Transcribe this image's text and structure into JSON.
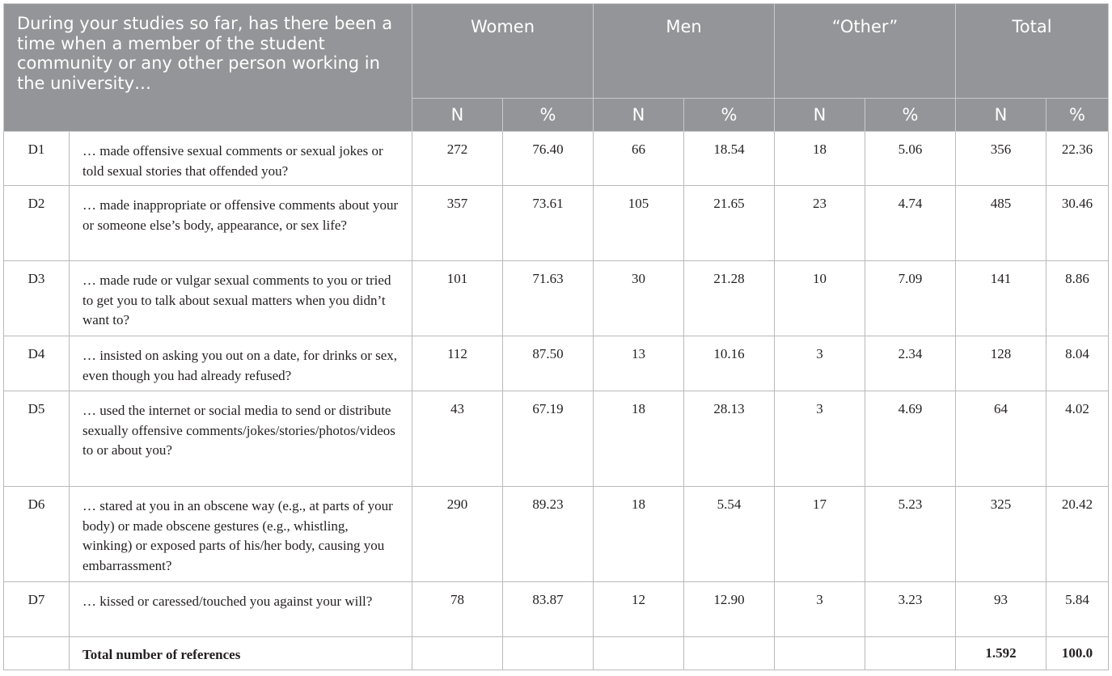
{
  "header": {
    "question": "During your studies so far, has there been a time when a member of the student community or any other person working in the university…",
    "groups": [
      "Women",
      "Men",
      "“Other”",
      "Total"
    ],
    "sub": [
      "N",
      "%",
      "N",
      "%",
      "N",
      "%",
      "N",
      "%"
    ]
  },
  "rows": [
    {
      "id": "D1",
      "text": "… made offensive sexual comments or sexual jokes or told sexual stories that offended you?",
      "values": [
        "272",
        "76.40",
        "66",
        "18.54",
        "18",
        "5.06",
        "356",
        "22.36"
      ]
    },
    {
      "id": "D2",
      "text": "… made inappropriate or offensive comments about your or someone else’s body, appearance, or sex life?",
      "values": [
        "357",
        "73.61",
        "105",
        "21.65",
        "23",
        "4.74",
        "485",
        "30.46"
      ]
    },
    {
      "id": "D3",
      "text": "… made rude or vulgar sexual comments to you or tried to get you to talk about sexual matters when you didn’t want to?",
      "values": [
        "101",
        "71.63",
        "30",
        "21.28",
        "10",
        "7.09",
        "141",
        "8.86"
      ]
    },
    {
      "id": "D4",
      "text": "… insisted on asking you out on a date, for drinks or sex, even though you had already refused?",
      "values": [
        "112",
        "87.50",
        "13",
        "10.16",
        "3",
        "2.34",
        "128",
        "8.04"
      ]
    },
    {
      "id": "D5",
      "text": "… used the internet or social media to send or distribute sexually offensive comments/jokes/stories/photos/videos to or about you?",
      "values": [
        "43",
        "67.19",
        "18",
        "28.13",
        "3",
        "4.69",
        "64",
        "4.02"
      ]
    },
    {
      "id": "D6",
      "text": "… stared at you in an obscene way (e.g., at parts of your body) or made obscene gestures (e.g., whistling, winking) or exposed parts of his/her body, causing you embarrassment?",
      "values": [
        "290",
        "89.23",
        "18",
        "5.54",
        "17",
        "5.23",
        "325",
        "20.42"
      ]
    },
    {
      "id": "D7",
      "text": "… kissed or caressed/touched you against your will?",
      "values": [
        "78",
        "83.87",
        "12",
        "12.90",
        "3",
        "3.23",
        "93",
        "5.84"
      ]
    }
  ],
  "total_row": {
    "label": "Total number of references",
    "n": "1.592",
    "pct": "100.0"
  }
}
